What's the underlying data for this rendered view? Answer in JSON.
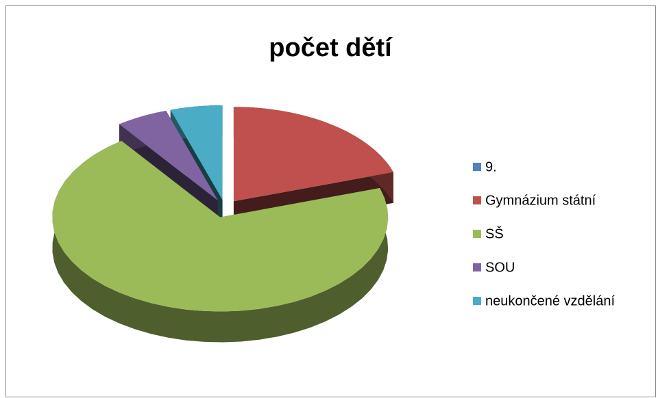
{
  "chart_data": {
    "type": "pie3d",
    "title": "počet dětí",
    "categories": [
      "9.",
      "Gymnázium státní",
      "SŠ",
      "SOU",
      "neukončené vzdělání"
    ],
    "values": [
      0,
      4,
      14,
      1,
      1
    ],
    "colors": [
      "#4f81bd",
      "#c0504d",
      "#9bbb59",
      "#8064a2",
      "#4bacc6"
    ],
    "legend": "right"
  }
}
